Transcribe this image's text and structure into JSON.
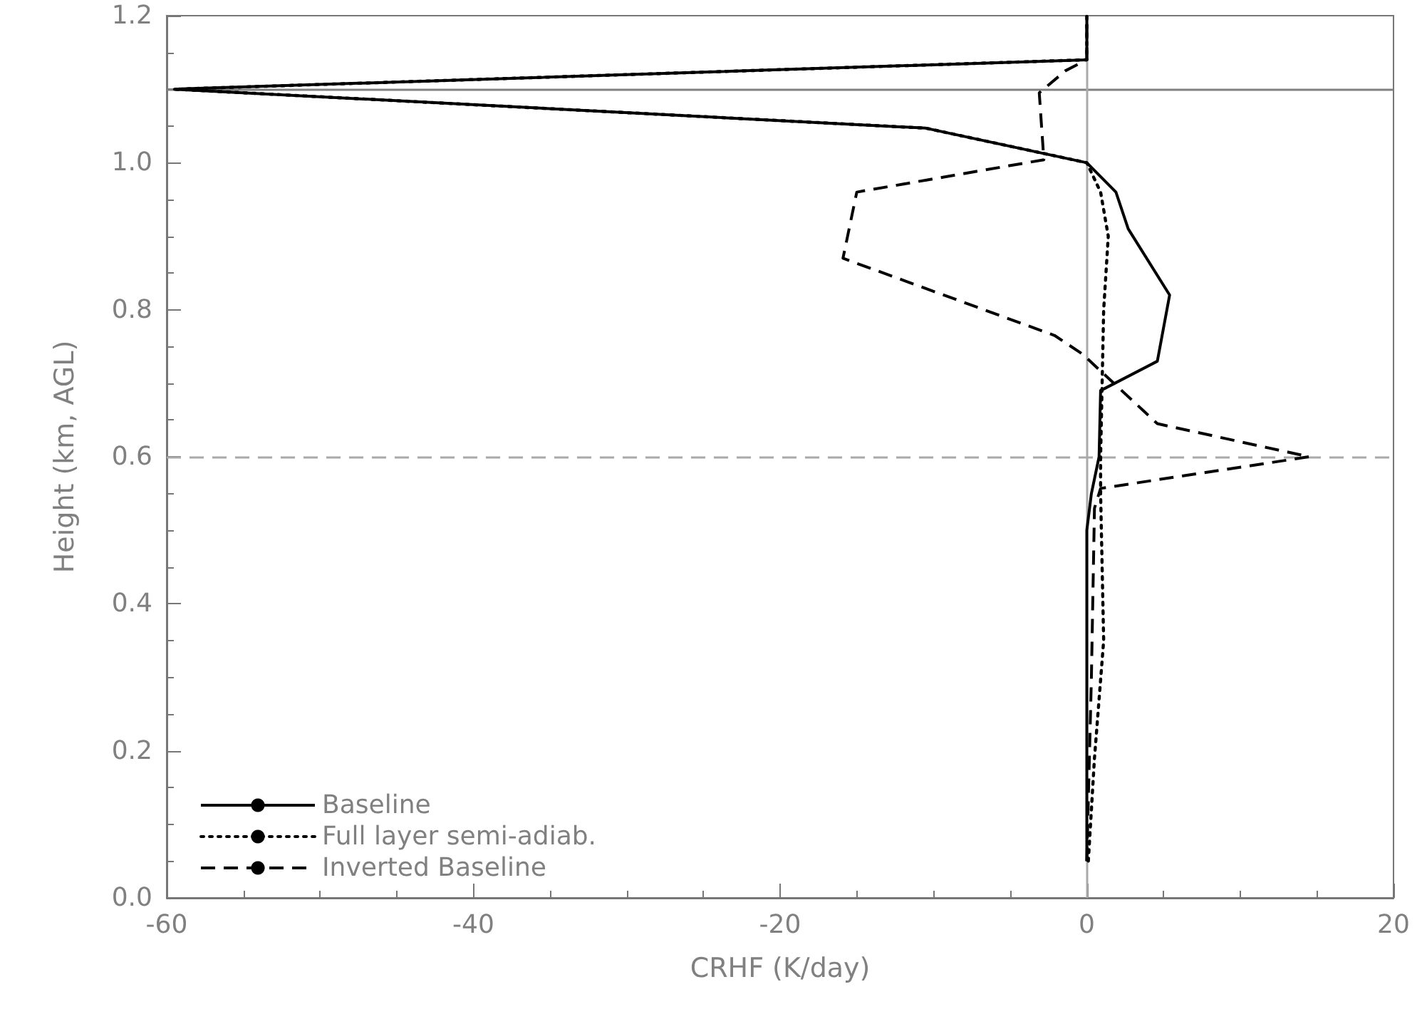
{
  "chart_data": {
    "type": "line",
    "xlabel": "CRHF (K/day)",
    "ylabel": "Height (km, AGL)",
    "xlim": [
      -60,
      20
    ],
    "xticks": [
      -60,
      -40,
      -20,
      0,
      20
    ],
    "ylim": [
      0,
      1.2
    ],
    "yticks": [
      {
        "value": 0,
        "label": "0.0"
      },
      {
        "value": 0.2,
        "label": "0.2"
      },
      {
        "value": 0.4,
        "label": "0.4"
      },
      {
        "value": 0.6,
        "label": "0.6"
      },
      {
        "value": 0.8,
        "label": "0.8"
      },
      {
        "value": 1,
        "label": "1.0"
      },
      {
        "value": 1.2,
        "label": "1.2"
      }
    ],
    "grid": false,
    "legend": "bottom left",
    "marker": "none",
    "series": [
      {
        "name": "Baseline",
        "color": "#000000",
        "line_style": "solid",
        "x": [
          0,
          0,
          0,
          0.3,
          0.8,
          0.9,
          4.6,
          5.4,
          2.7,
          1.9,
          0,
          -10.5,
          -59.5,
          0,
          0
        ],
        "values": [
          0.05,
          0.3,
          0.5,
          0.55,
          0.6,
          0.69,
          0.73,
          0.82,
          0.91,
          0.96,
          1.0,
          1.047,
          1.1,
          1.14,
          1.2
        ]
      },
      {
        "name": "Full layer semi-adiab.",
        "color": "#000000",
        "line_style": "dotted",
        "x": [
          0.1,
          0.5,
          1.1,
          0.9,
          0.9,
          1.1,
          1.4,
          0.9,
          0,
          -10.5,
          -59.5,
          0,
          0
        ],
        "values": [
          0.05,
          0.19,
          0.35,
          0.55,
          0.6,
          0.8,
          0.9,
          0.96,
          1.0,
          1.047,
          1.1,
          1.14,
          1.2
        ]
      },
      {
        "name": "Inverted Baseline",
        "color": "#000000",
        "line_style": "dashed",
        "x": [
          0,
          0.3,
          0.5,
          0.9,
          14.5,
          4.6,
          -0.3,
          -2.1,
          -15.9,
          -15,
          -2.8,
          -3.1,
          -1.4,
          0,
          0
        ],
        "values": [
          0.05,
          0.3,
          0.53,
          0.557,
          0.6,
          0.645,
          0.74,
          0.765,
          0.87,
          0.96,
          1.004,
          1.095,
          1.125,
          1.14,
          1.2
        ]
      }
    ],
    "ref_lines": [
      {
        "axis": "y",
        "value": 1.1,
        "color": "#808080",
        "line_style": "solid"
      },
      {
        "axis": "y",
        "value": 0.6,
        "color": "#aaaaaa",
        "line_style": "dashed"
      },
      {
        "axis": "x",
        "value": 0,
        "color": "#aaaaaa",
        "line_style": "solid"
      }
    ]
  }
}
